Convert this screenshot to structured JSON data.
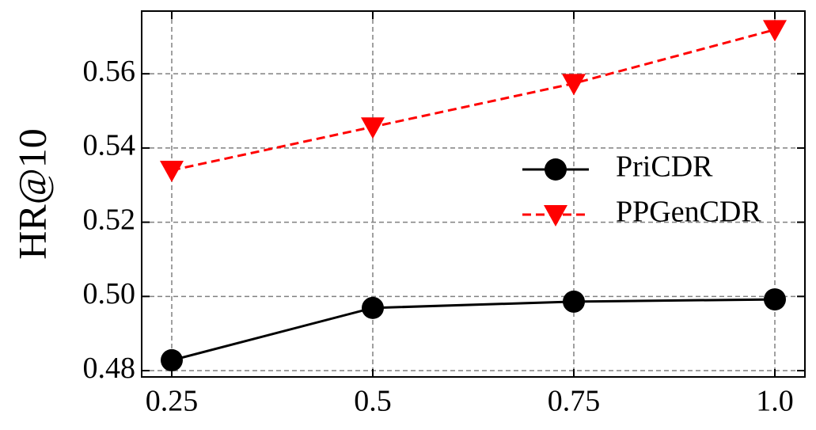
{
  "chart_data": {
    "type": "line",
    "y_label": "HR@10",
    "x": [
      0.25,
      0.5,
      0.75,
      1.0
    ],
    "series": [
      {
        "name": "PriCDR",
        "color": "#000000",
        "marker": "circle",
        "linestyle": "solid",
        "values": [
          0.4828,
          0.4969,
          0.4986,
          0.4992
        ]
      },
      {
        "name": "PPGenCDR",
        "color": "#ff0000",
        "marker": "triangle-down",
        "linestyle": "dashed",
        "values": [
          0.534,
          0.5457,
          0.5574,
          0.5719
        ]
      }
    ],
    "xlim": [
      0.2126,
      1.0374
    ],
    "ylim": [
      0.4783,
      0.5769
    ],
    "xticks": [
      0.25,
      0.5,
      0.75,
      {
        "value": 1,
        "label": "1.0"
      }
    ],
    "yticks": [
      0.48,
      {
        "value": 0.5,
        "label": "0.50"
      },
      0.52,
      0.54,
      0.56
    ],
    "grid": true,
    "legend": "right"
  }
}
